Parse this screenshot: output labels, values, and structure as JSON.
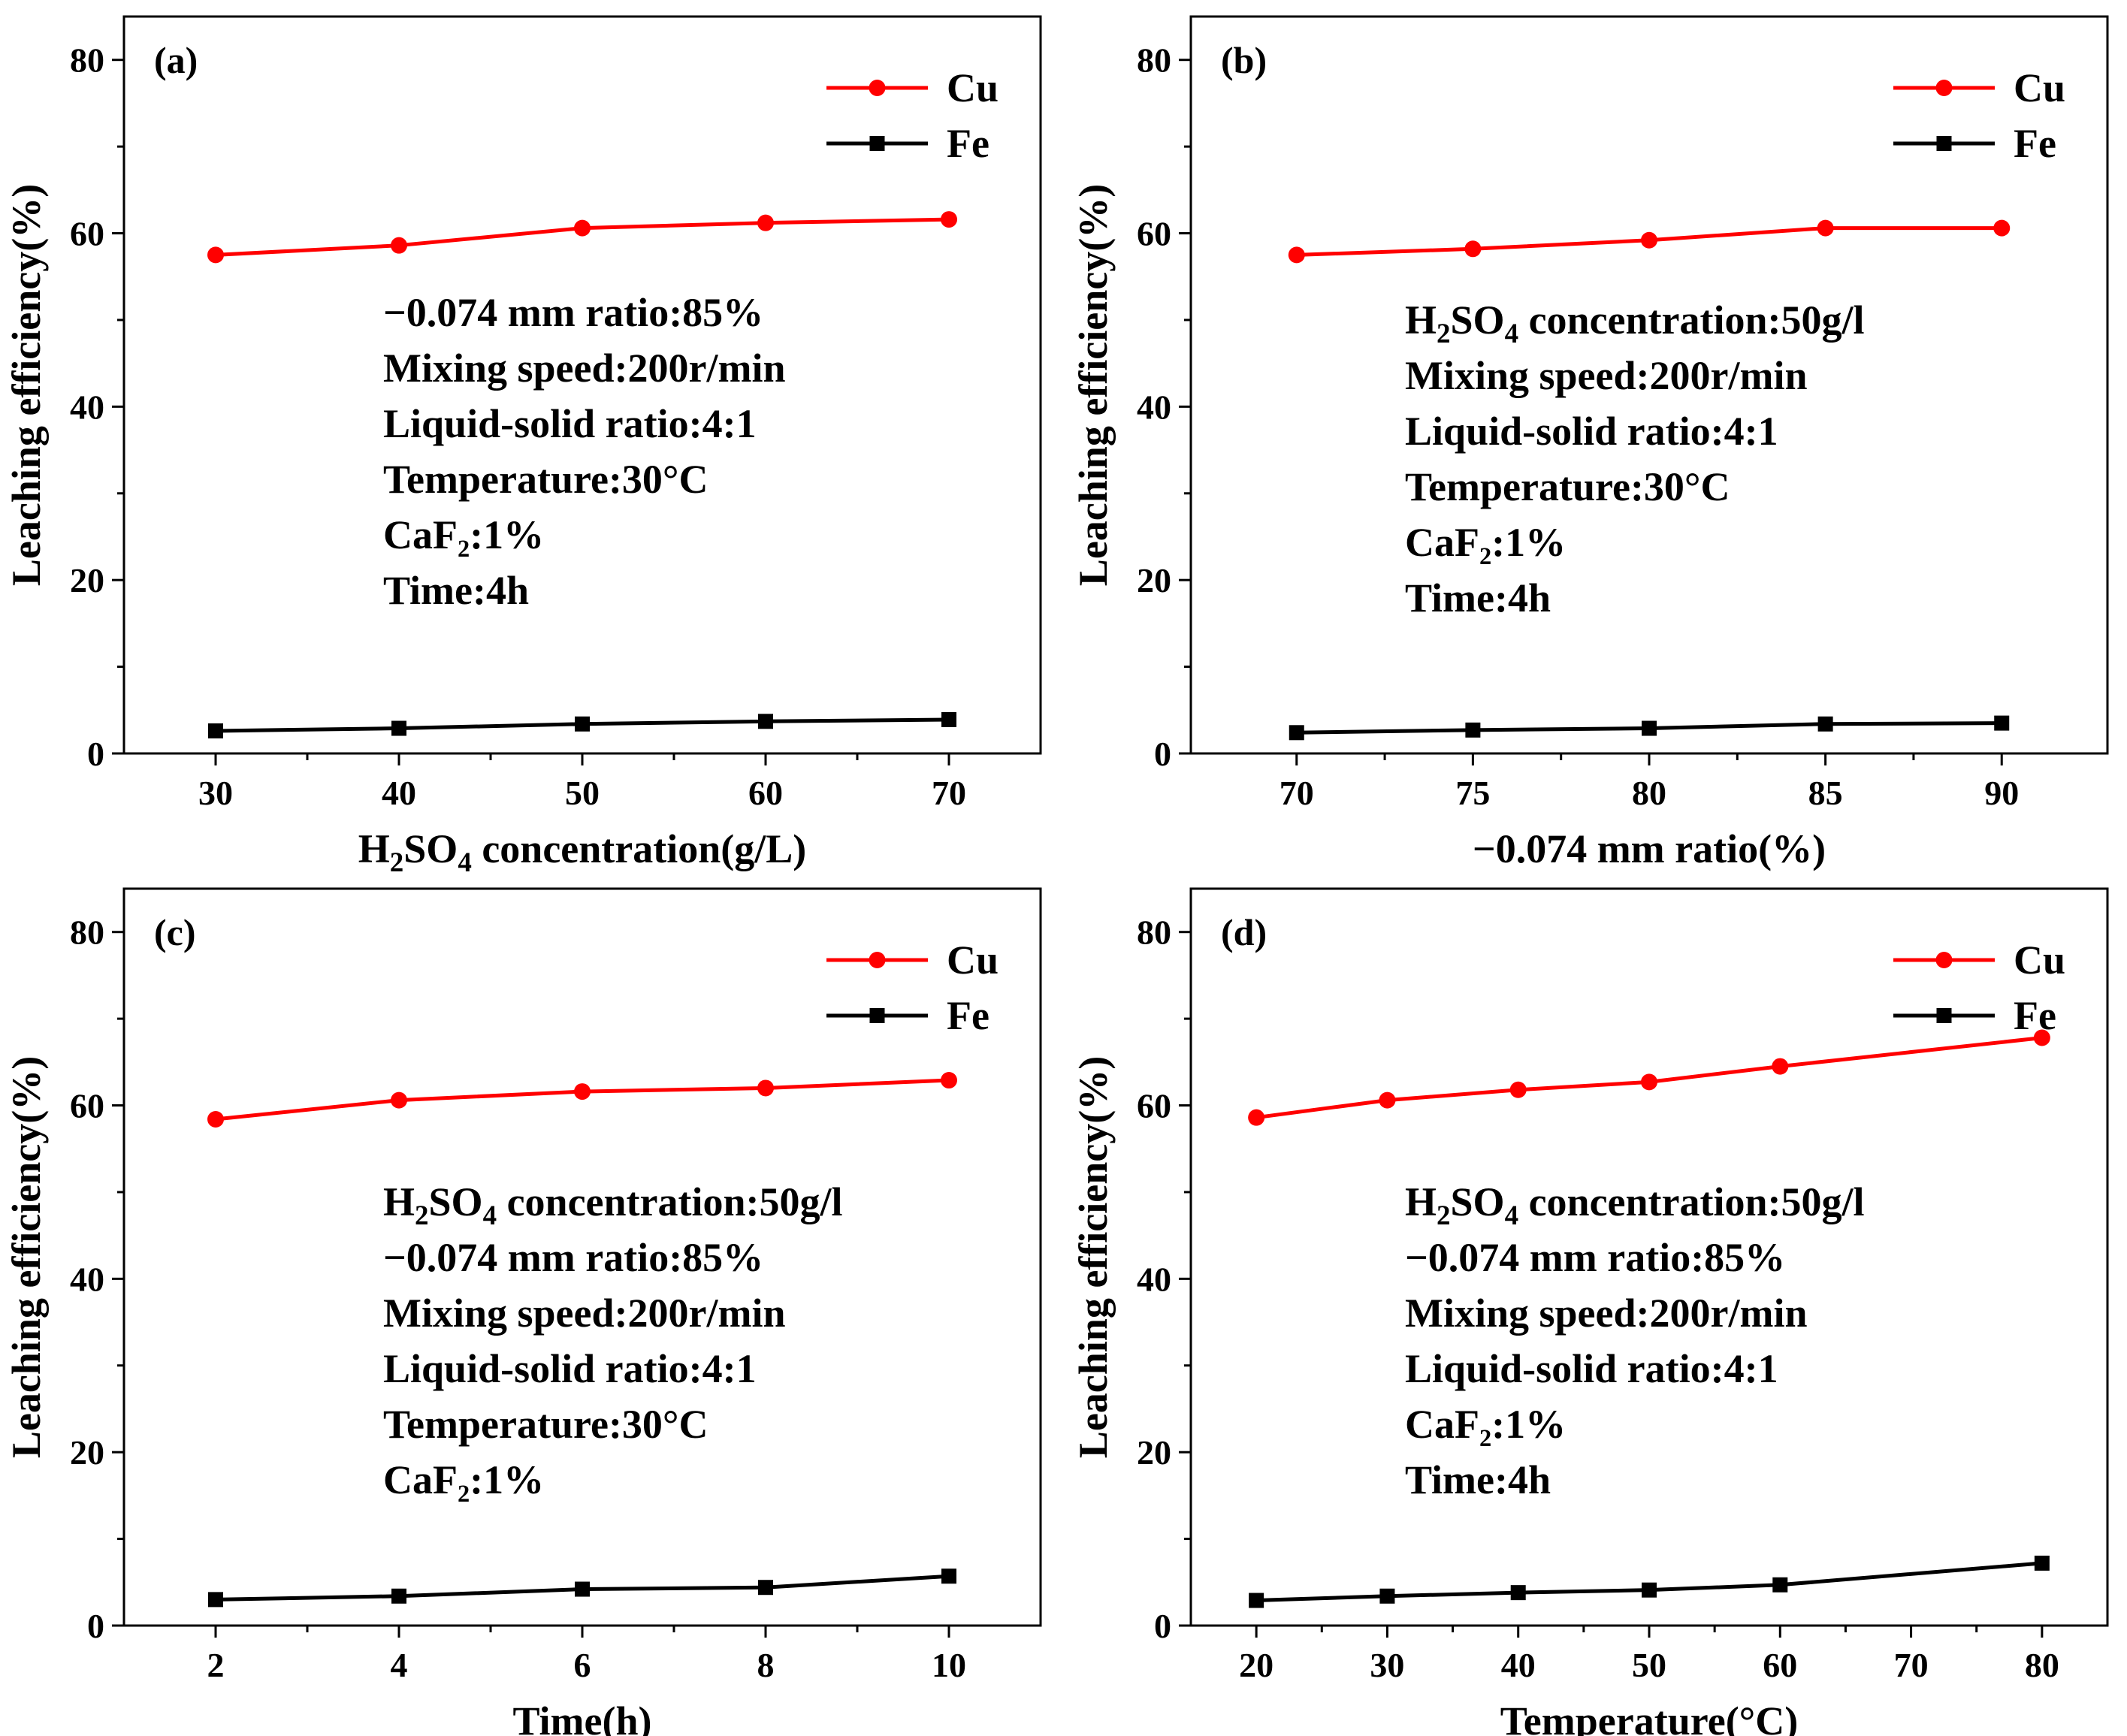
{
  "figure": {
    "panels": [
      "a",
      "b",
      "c",
      "d"
    ]
  },
  "chart_data": [
    {
      "type": "line",
      "panel_label": "(a)",
      "xlabel": {
        "before": "H",
        "sub1": "2",
        "mid": "SO",
        "sub2": "4",
        "after": " concentration(g/L)"
      },
      "ylabel": "Leaching efficiency(%)",
      "x": [
        30,
        40,
        50,
        60,
        70
      ],
      "xlim": [
        25,
        75
      ],
      "ylim": [
        0,
        85
      ],
      "xticks": [
        "30",
        "40",
        "50",
        "60",
        "70"
      ],
      "yticks": [
        "0",
        "20",
        "40",
        "60",
        "80"
      ],
      "series": [
        {
          "name": "Cu",
          "color": "#ff0000",
          "marker": "circle",
          "values": [
            57.5,
            58.6,
            60.6,
            61.2,
            61.6
          ]
        },
        {
          "name": "Fe",
          "color": "#000000",
          "marker": "square",
          "values": [
            2.6,
            2.9,
            3.4,
            3.7,
            3.9
          ]
        }
      ],
      "legend": {
        "position": "top-right",
        "entries": [
          "Cu",
          "Fe"
        ]
      },
      "annotations": [
        "−0.074 mm ratio:85%",
        "Mixing speed:200r/min",
        "Liquid-solid ratio:4:1",
        "Temperature:30°C",
        "CaF₂:1%",
        "Time:4h"
      ]
    },
    {
      "type": "line",
      "panel_label": "(b)",
      "xlabel": {
        "before": "",
        "sub1": "",
        "mid": "−0.074 mm ratio(%)",
        "sub2": "",
        "after": ""
      },
      "ylabel": "Leaching efficiency(%)",
      "x": [
        70,
        75,
        80,
        85,
        90
      ],
      "xlim": [
        67,
        93
      ],
      "ylim": [
        0,
        85
      ],
      "xticks": [
        "70",
        "75",
        "80",
        "85",
        "90"
      ],
      "yticks": [
        "0",
        "20",
        "40",
        "60",
        "80"
      ],
      "series": [
        {
          "name": "Cu",
          "color": "#ff0000",
          "marker": "circle",
          "values": [
            57.5,
            58.2,
            59.2,
            60.6,
            60.6
          ]
        },
        {
          "name": "Fe",
          "color": "#000000",
          "marker": "square",
          "values": [
            2.4,
            2.7,
            2.9,
            3.4,
            3.5
          ]
        }
      ],
      "legend": {
        "position": "top-right",
        "entries": [
          "Cu",
          "Fe"
        ]
      },
      "annotations": [
        {
          "before": "H",
          "sub1": "2",
          "mid": "SO",
          "sub2": "4",
          "after": " concentration:50g/l"
        },
        "Mixing speed:200r/min",
        "Liquid-solid ratio:4:1",
        "Temperature:30°C",
        "CaF₂:1%",
        "Time:4h"
      ]
    },
    {
      "type": "line",
      "panel_label": "(c)",
      "xlabel": {
        "before": "",
        "sub1": "",
        "mid": "Time(h)",
        "sub2": "",
        "after": ""
      },
      "ylabel": "Leaching efficiency(%)",
      "x": [
        2,
        4,
        6,
        8,
        10
      ],
      "xlim": [
        1,
        11
      ],
      "ylim": [
        0,
        85
      ],
      "xticks": [
        "2",
        "4",
        "6",
        "8",
        "10"
      ],
      "yticks": [
        "0",
        "20",
        "40",
        "60",
        "80"
      ],
      "series": [
        {
          "name": "Cu",
          "color": "#ff0000",
          "marker": "circle",
          "values": [
            58.4,
            60.6,
            61.6,
            62.0,
            62.9
          ]
        },
        {
          "name": "Fe",
          "color": "#000000",
          "marker": "square",
          "values": [
            3.0,
            3.4,
            4.2,
            4.4,
            5.7
          ]
        }
      ],
      "legend": {
        "position": "top-right",
        "entries": [
          "Cu",
          "Fe"
        ]
      },
      "annotations": [
        {
          "before": "H",
          "sub1": "2",
          "mid": "SO",
          "sub2": "4",
          "after": " concentration:50g/l"
        },
        "−0.074 mm ratio:85%",
        "Mixing speed:200r/min",
        "Liquid-solid ratio:4:1",
        "Temperature:30°C",
        "CaF₂:1%"
      ]
    },
    {
      "type": "line",
      "panel_label": "(d)",
      "xlabel": {
        "before": "",
        "sub1": "",
        "mid": "Temperature(°C)",
        "sub2": "",
        "after": ""
      },
      "ylabel": "Leaching efficiency(%)",
      "x": [
        20,
        30,
        40,
        50,
        60,
        80
      ],
      "xlim": [
        15,
        85
      ],
      "ylim": [
        0,
        85
      ],
      "xticks": [
        "20",
        "30",
        "40",
        "50",
        "60",
        "70",
        "80"
      ],
      "yticks": [
        "0",
        "20",
        "40",
        "60",
        "80"
      ],
      "series": [
        {
          "name": "Cu",
          "color": "#ff0000",
          "marker": "circle",
          "values": [
            58.6,
            60.6,
            61.8,
            62.7,
            64.5,
            67.8
          ]
        },
        {
          "name": "Fe",
          "color": "#000000",
          "marker": "square",
          "values": [
            2.9,
            3.4,
            3.8,
            4.1,
            4.7,
            7.2
          ]
        }
      ],
      "legend": {
        "position": "top-right",
        "entries": [
          "Cu",
          "Fe"
        ]
      },
      "annotations": [
        {
          "before": "H",
          "sub1": "2",
          "mid": "SO",
          "sub2": "4",
          "after": " concentration:50g/l"
        },
        "−0.074 mm ratio:85%",
        "Mixing speed:200r/min",
        "Liquid-solid ratio:4:1",
        "CaF₂:1%",
        "Time:4h"
      ]
    }
  ]
}
